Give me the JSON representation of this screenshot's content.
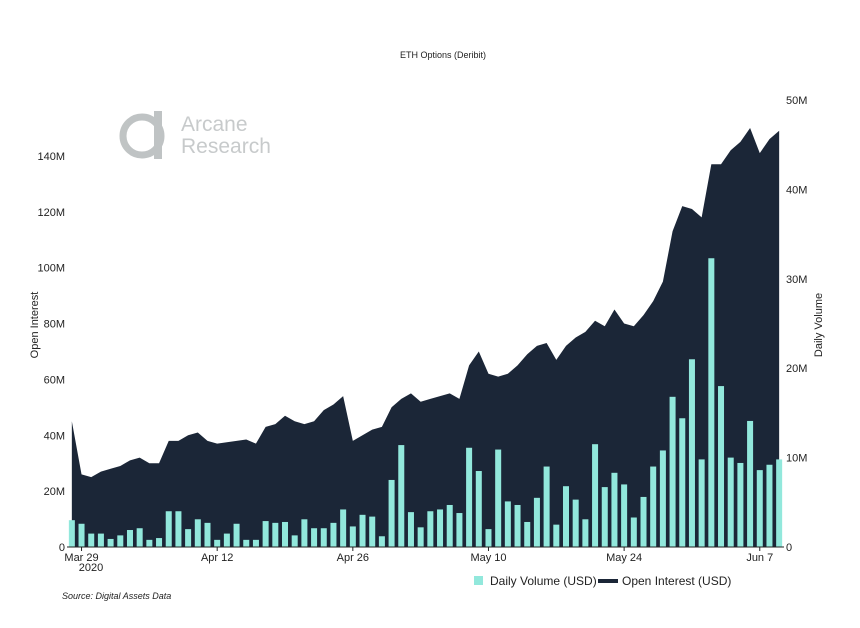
{
  "chart_data": {
    "type": "bar+area",
    "title": "ETH Options (Deribit)",
    "source": "Source: Digital Assets Data",
    "watermark": {
      "line1": "Arcane",
      "line2": "Research"
    },
    "x_ticks": [
      {
        "label": "Mar 29",
        "index": 1
      },
      {
        "label": "Apr 12",
        "index": 15
      },
      {
        "label": "Apr 26",
        "index": 29
      },
      {
        "label": "May 10",
        "index": 43
      },
      {
        "label": "May 24",
        "index": 57
      },
      {
        "label": "Jun 7",
        "index": 71
      }
    ],
    "x_year_label": "2020",
    "y_left": {
      "label": "Open Interest",
      "min": 0,
      "max": 160000000,
      "ticks": [
        {
          "v": 0,
          "label": "0"
        },
        {
          "v": 20000000,
          "label": "20M"
        },
        {
          "v": 40000000,
          "label": "40M"
        },
        {
          "v": 60000000,
          "label": "60M"
        },
        {
          "v": 80000000,
          "label": "80M"
        },
        {
          "v": 100000000,
          "label": "100M"
        },
        {
          "v": 120000000,
          "label": "120M"
        },
        {
          "v": 140000000,
          "label": "140M"
        }
      ]
    },
    "y_right": {
      "label": "Daily Volume",
      "min": 0,
      "max": 50000000,
      "ticks": [
        {
          "v": 0,
          "label": "0"
        },
        {
          "v": 10000000,
          "label": "10M"
        },
        {
          "v": 20000000,
          "label": "20M"
        },
        {
          "v": 30000000,
          "label": "30M"
        },
        {
          "v": 40000000,
          "label": "40M"
        },
        {
          "v": 50000000,
          "label": "50M"
        }
      ]
    },
    "series": [
      {
        "name": "Daily Volume (USD)",
        "type": "bar",
        "axis": "right",
        "color": "#92e8dc",
        "values": [
          3.0,
          2.6,
          1.5,
          1.5,
          0.9,
          1.3,
          1.9,
          2.1,
          0.8,
          1.0,
          4.0,
          4.0,
          2.0,
          3.1,
          2.7,
          0.8,
          1.5,
          2.6,
          0.8,
          0.8,
          2.9,
          2.7,
          2.8,
          1.3,
          3.1,
          2.1,
          2.1,
          2.7,
          4.2,
          2.3,
          3.6,
          3.4,
          1.2,
          7.5,
          11.4,
          3.9,
          2.2,
          4.0,
          4.2,
          4.7,
          3.8,
          11.1,
          8.5,
          2.0,
          10.9,
          5.1,
          4.7,
          2.8,
          5.5,
          9.0,
          2.5,
          6.8,
          5.3,
          3.1,
          11.5,
          6.7,
          8.3,
          7.0,
          3.3,
          5.6,
          9.0,
          10.8,
          16.8,
          14.4,
          21.0,
          9.8,
          32.3,
          18.0,
          10.0,
          9.4,
          14.1,
          8.6,
          9.2,
          9.8
        ],
        "unit": "M USD"
      },
      {
        "name": "Open Interest (USD)",
        "type": "area",
        "axis": "left",
        "color": "#1b2637",
        "values": [
          45,
          26,
          25,
          27,
          28,
          29,
          31,
          32,
          30,
          30,
          38,
          38,
          40,
          41,
          38,
          37,
          37.5,
          38,
          38.5,
          37,
          43,
          44,
          47,
          45,
          44,
          45,
          49,
          51,
          54,
          38,
          40,
          42,
          43,
          50,
          53,
          55,
          52,
          53,
          54,
          55,
          53,
          65,
          70,
          62,
          61,
          62,
          65,
          69,
          72,
          73,
          67,
          72,
          75,
          77,
          81,
          79,
          85,
          80,
          79,
          83,
          88,
          95,
          113,
          122,
          121,
          118,
          137,
          137,
          142,
          145,
          150,
          141,
          146,
          149
        ],
        "unit": "M USD"
      }
    ],
    "legend": {
      "placement": "bottom-right"
    },
    "grid": false
  }
}
